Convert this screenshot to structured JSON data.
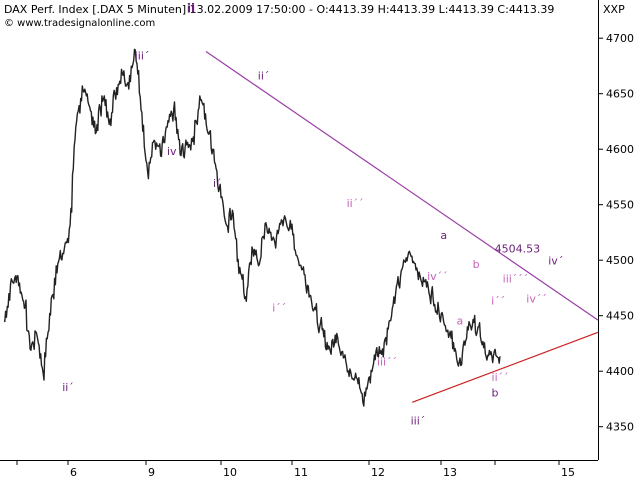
{
  "header": {
    "instrument_line": "DAX Perf. Index [.DAX  5 Minuten] 13.02.2009 17:50:00 - O:4413.39 H:4413.39 L:4413.39 C:4413.39",
    "copyright": "© www.tradesignalonline.com",
    "symbol": "XXP"
  },
  "colors": {
    "price": "#222222",
    "upper_trendline": "#9a3fa6",
    "lower_trendline": "#cc2222",
    "label_major": "#6b1f7a",
    "label_minor": "#c764b7"
  },
  "chart_data": {
    "type": "line",
    "ylim": [
      4320,
      4720
    ],
    "yticks": [
      4350,
      4400,
      4450,
      4500,
      4550,
      4600,
      4650,
      4700
    ],
    "xticks": [
      "6",
      "9",
      "10",
      "11",
      "12",
      "13",
      "15"
    ],
    "series": [
      {
        "values": [
          4445,
          4478,
          4486,
          4463,
          4420,
          4434,
          4398,
          4452,
          4495,
          4506,
          4528,
          4620,
          4657,
          4640,
          4614,
          4648,
          4627,
          4650,
          4672,
          4660,
          4690,
          4635,
          4580,
          4608,
          4594,
          4620,
          4636,
          4595,
          4604,
          4611,
          4648,
          4622,
          4600,
          4565,
          4533,
          4545,
          4488,
          4467,
          4512,
          4495,
          4533,
          4518,
          4524,
          4540,
          4528,
          4502,
          4487,
          4468,
          4444,
          4431,
          4418,
          4434,
          4412,
          4402,
          4394,
          4372,
          4395,
          4418,
          4420,
          4445,
          4470,
          4492,
          4507,
          4497,
          4480,
          4476,
          4460,
          4452,
          4437,
          4418,
          4405,
          4440,
          4444,
          4431,
          4410,
          4414,
          4413.39
        ]
      }
    ],
    "trendlines": [
      {
        "name": "upper",
        "from": {
          "x": 9.8,
          "y": 4688
        },
        "to": {
          "x": 15.6,
          "y": 4446
        }
      },
      {
        "name": "lower",
        "from": {
          "x": 12.6,
          "y": 4372
        },
        "to": {
          "x": 15.6,
          "y": 4435
        }
      }
    ],
    "annotations": [
      {
        "text": "ii",
        "x": 9.6,
        "y": 4723,
        "style": "major"
      },
      {
        "text": "iii´",
        "x": 8.85,
        "y": 4681,
        "style": "major"
      },
      {
        "text": "iv´",
        "x": 9.38,
        "y": 4595,
        "style": "major"
      },
      {
        "text": "i´",
        "x": 9.95,
        "y": 4566,
        "style": "major"
      },
      {
        "text": "ii´",
        "x": 10.6,
        "y": 4663,
        "style": "major"
      },
      {
        "text": "ii´",
        "x": 6.0,
        "y": 4382,
        "style": "major"
      },
      {
        "text": "ii´´",
        "x": 11.82,
        "y": 4548,
        "style": "minor"
      },
      {
        "text": "i´´",
        "x": 10.82,
        "y": 4454,
        "style": "minor"
      },
      {
        "text": "iii´´",
        "x": 12.25,
        "y": 4405,
        "style": "minor"
      },
      {
        "text": "iv´´",
        "x": 12.95,
        "y": 4482,
        "style": "minor"
      },
      {
        "text": "iii´",
        "x": 12.68,
        "y": 4352,
        "style": "major"
      },
      {
        "text": "a",
        "x": 13.05,
        "y": 4519,
        "style": "major"
      },
      {
        "text": "b",
        "x": 13.65,
        "y": 4493,
        "style": "minor"
      },
      {
        "text": "a",
        "x": 13.35,
        "y": 4442,
        "style": "minor"
      },
      {
        "text": "i´´",
        "x": 14.05,
        "y": 4460,
        "style": "minor"
      },
      {
        "text": "b",
        "x": 14.0,
        "y": 4377,
        "style": "major"
      },
      {
        "text": "ii´´",
        "x": 14.08,
        "y": 4391,
        "style": "minor"
      },
      {
        "text": "4504.53",
        "x": 14.35,
        "y": 4507,
        "style": "major"
      },
      {
        "text": "iii´´´",
        "x": 14.32,
        "y": 4480,
        "style": "minor"
      },
      {
        "text": "iv´",
        "x": 14.95,
        "y": 4496,
        "style": "major"
      },
      {
        "text": "iv´´",
        "x": 14.65,
        "y": 4462,
        "style": "minor"
      }
    ]
  }
}
